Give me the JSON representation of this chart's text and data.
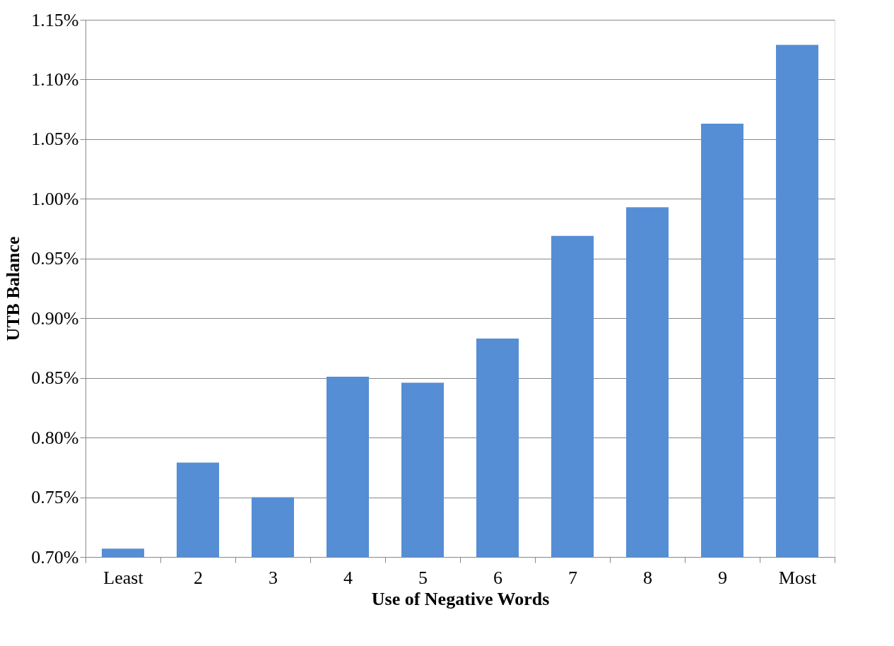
{
  "chart_data": {
    "type": "bar",
    "xlabel": "Use of  Negative Words",
    "ylabel": "UTB Balance",
    "categories": [
      "Least",
      "2",
      "3",
      "4",
      "5",
      "6",
      "7",
      "8",
      "9",
      "Most"
    ],
    "values": [
      0.707,
      0.779,
      0.75,
      0.851,
      0.846,
      0.883,
      0.969,
      0.993,
      1.063,
      1.129
    ],
    "color": "#558ed5",
    "ylim": [
      0.7,
      1.15
    ],
    "yticks": [
      {
        "value": 0.7,
        "label": "0.70%"
      },
      {
        "value": 0.75,
        "label": "0.75%"
      },
      {
        "value": 0.8,
        "label": "0.80%"
      },
      {
        "value": 0.85,
        "label": "0.85%"
      },
      {
        "value": 0.9,
        "label": "0.90%"
      },
      {
        "value": 0.95,
        "label": "0.95%"
      },
      {
        "value": 1.0,
        "label": "1.00%"
      },
      {
        "value": 1.05,
        "label": "1.05%"
      },
      {
        "value": 1.1,
        "label": "1.10%"
      },
      {
        "value": 1.15,
        "label": "1.15%"
      }
    ],
    "grid": "y"
  }
}
